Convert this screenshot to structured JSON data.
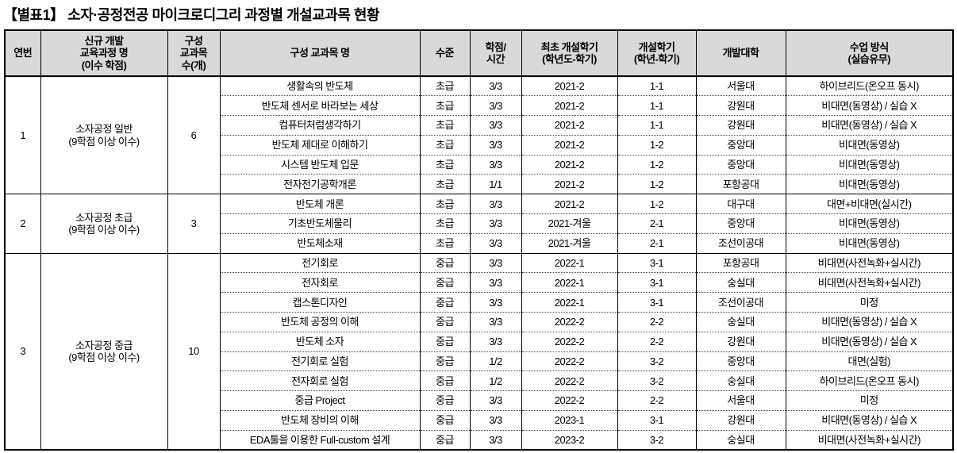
{
  "title": "【별표1】 소자·공정전공 마이크로디그리 과정별 개설교과목 현황",
  "colors": {
    "header_bg": "#d9d9d9",
    "border": "#000000",
    "text": "#000000"
  },
  "table": {
    "headers": {
      "no": "연번",
      "curriculum": "신규 개발\n교육과정 명\n(이수 학점)",
      "course_count": "구성\n교과목\n수(개)",
      "course_name": "구성 교과목 명",
      "level": "수준",
      "credit_hours": "학점/\n시간",
      "first_semester": "최초 개설학기\n(학년도-학기)",
      "semester": "개설학기\n(학년-학기)",
      "university": "개발대학",
      "method": "수업 방식\n(실습유무)"
    },
    "groups": [
      {
        "no": "1",
        "name": "소자공정 일반\n(9학점 이상 이수)",
        "count": "6",
        "courses": [
          {
            "name": "생활속의 반도체",
            "level": "초급",
            "credit": "3/3",
            "first": "2021-2",
            "semester": "1-1",
            "univ": "서울대",
            "method": "하이브리드(온오프 동시)"
          },
          {
            "name": "반도체 센서로 바라보는 세상",
            "level": "초급",
            "credit": "3/3",
            "first": "2021-2",
            "semester": "1-1",
            "univ": "강원대",
            "method": "비대면(동영상) / 실습 X"
          },
          {
            "name": "컴퓨터처럼생각하기",
            "level": "초급",
            "credit": "3/3",
            "first": "2021-2",
            "semester": "1-1",
            "univ": "강원대",
            "method": "비대면(동영상) / 실습 X"
          },
          {
            "name": "반도체 제대로 이해하기",
            "level": "초급",
            "credit": "3/3",
            "first": "2021-2",
            "semester": "1-2",
            "univ": "중앙대",
            "method": "비대면(동영상)"
          },
          {
            "name": "시스템 반도체 입문",
            "level": "초급",
            "credit": "3/3",
            "first": "2021-2",
            "semester": "1-2",
            "univ": "중앙대",
            "method": "비대면(동영상)"
          },
          {
            "name": "전자전기공학개론",
            "level": "초급",
            "credit": "1/1",
            "first": "2021-2",
            "semester": "1-2",
            "univ": "포항공대",
            "method": "비대면(동영상)"
          }
        ]
      },
      {
        "no": "2",
        "name": "소자공정 초급\n(9학점 이상 이수)",
        "count": "3",
        "courses": [
          {
            "name": "반도체 개론",
            "level": "초급",
            "credit": "3/3",
            "first": "2021-2",
            "semester": "1-2",
            "univ": "대구대",
            "method": "대면+비대면(실시간)"
          },
          {
            "name": "기초반도체물리",
            "level": "초급",
            "credit": "3/3",
            "first": "2021-겨울",
            "semester": "2-1",
            "univ": "중앙대",
            "method": "비대면(동영상)"
          },
          {
            "name": "반도체소재",
            "level": "초급",
            "credit": "3/3",
            "first": "2021-겨울",
            "semester": "2-1",
            "univ": "조선이공대",
            "method": "비대면(동영상)"
          }
        ]
      },
      {
        "no": "3",
        "name": "소자공정 중급\n(9학점 이상 이수)",
        "count": "10",
        "courses": [
          {
            "name": "전기회로",
            "level": "중급",
            "credit": "3/3",
            "first": "2022-1",
            "semester": "3-1",
            "univ": "포항공대",
            "method": "비대면(사전녹화+실시간)"
          },
          {
            "name": "전자회로",
            "level": "중급",
            "credit": "3/3",
            "first": "2022-1",
            "semester": "3-1",
            "univ": "숭실대",
            "method": "비대면(사전녹화+실시간)"
          },
          {
            "name": "캡스톤디자인",
            "level": "중급",
            "credit": "3/3",
            "first": "2022-1",
            "semester": "3-1",
            "univ": "조선이공대",
            "method": "미정"
          },
          {
            "name": "반도체 공정의 이해",
            "level": "중급",
            "credit": "3/3",
            "first": "2022-2",
            "semester": "2-2",
            "univ": "숭실대",
            "method": "비대면(동영상) / 실습 X"
          },
          {
            "name": "반도체 소자",
            "level": "중급",
            "credit": "3/3",
            "first": "2022-2",
            "semester": "2-2",
            "univ": "강원대",
            "method": "비대면(동영상) / 실습 X"
          },
          {
            "name": "전기회로 실험",
            "level": "중급",
            "credit": "1/2",
            "first": "2022-2",
            "semester": "3-2",
            "univ": "중앙대",
            "method": "대면(실험)"
          },
          {
            "name": "전자회로 실험",
            "level": "중급",
            "credit": "1/2",
            "first": "2022-2",
            "semester": "3-2",
            "univ": "숭실대",
            "method": "하이브리드(온오프 동시)"
          },
          {
            "name": "중급 Project",
            "level": "중급",
            "credit": "3/3",
            "first": "2022-2",
            "semester": "2-2",
            "univ": "서울대",
            "method": "미정"
          },
          {
            "name": "반도체 장비의 이해",
            "level": "중급",
            "credit": "3/3",
            "first": "2023-1",
            "semester": "3-1",
            "univ": "강원대",
            "method": "비대면(동영상) / 실습 X"
          },
          {
            "name": "EDA툴을 이용한 Full-custom 설계",
            "level": "중급",
            "credit": "3/3",
            "first": "2023-2",
            "semester": "3-2",
            "univ": "숭실대",
            "method": "비대면(사전녹화+실시간)"
          }
        ]
      }
    ]
  }
}
